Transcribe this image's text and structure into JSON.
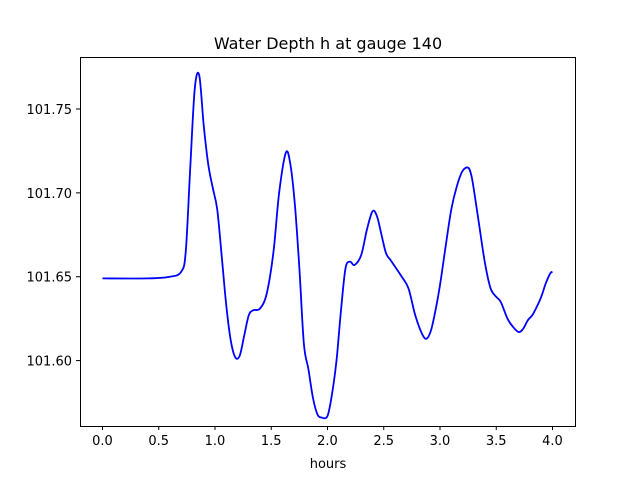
{
  "chart_data": {
    "type": "line",
    "title": "Water Depth h at gauge 140",
    "xlabel": "hours",
    "ylabel": "",
    "xlim": [
      -0.2,
      4.2
    ],
    "ylim": [
      101.561,
      101.781
    ],
    "grid": false,
    "x_ticks": [
      0.0,
      0.5,
      1.0,
      1.5,
      2.0,
      2.5,
      3.0,
      3.5,
      4.0
    ],
    "x_tick_labels": [
      "0.0",
      "0.5",
      "1.0",
      "1.5",
      "2.0",
      "2.5",
      "3.0",
      "3.5",
      "4.0"
    ],
    "y_ticks": [
      101.6,
      101.65,
      101.7,
      101.75
    ],
    "y_tick_labels": [
      "101.60",
      "101.65",
      "101.70",
      "101.75"
    ],
    "series": [
      {
        "color": "#0000ff",
        "x": [
          0.0,
          0.4,
          0.6,
          0.7,
          0.74,
          0.78,
          0.82,
          0.86,
          0.9,
          0.94,
          0.98,
          1.02,
          1.06,
          1.1,
          1.14,
          1.18,
          1.22,
          1.26,
          1.3,
          1.34,
          1.4,
          1.46,
          1.52,
          1.57,
          1.63,
          1.67,
          1.71,
          1.75,
          1.79,
          1.83,
          1.87,
          1.91,
          1.95,
          2.0,
          2.04,
          2.08,
          2.12,
          2.16,
          2.2,
          2.24,
          2.3,
          2.35,
          2.4,
          2.44,
          2.48,
          2.52,
          2.56,
          2.6,
          2.66,
          2.72,
          2.78,
          2.84,
          2.88,
          2.92,
          2.96,
          3.0,
          3.05,
          3.1,
          3.15,
          3.2,
          3.25,
          3.28,
          3.31,
          3.35,
          3.4,
          3.45,
          3.5,
          3.54,
          3.6,
          3.65,
          3.7,
          3.74,
          3.78,
          3.82,
          3.86,
          3.9,
          3.94,
          3.98,
          4.0
        ],
        "y": [
          101.649,
          101.649,
          101.65,
          101.653,
          101.665,
          101.715,
          101.762,
          101.77,
          101.74,
          101.717,
          101.703,
          101.69,
          101.662,
          101.633,
          101.612,
          101.602,
          101.603,
          101.615,
          101.627,
          101.63,
          101.631,
          101.64,
          101.665,
          101.7,
          101.724,
          101.717,
          101.693,
          101.655,
          101.61,
          101.595,
          101.578,
          101.568,
          101.566,
          101.567,
          101.58,
          101.6,
          101.63,
          101.655,
          101.659,
          101.657,
          101.663,
          101.678,
          101.689,
          101.686,
          101.675,
          101.664,
          101.66,
          101.656,
          101.65,
          101.643,
          101.627,
          101.616,
          101.613,
          101.618,
          101.63,
          101.645,
          101.668,
          101.69,
          101.704,
          101.713,
          101.715,
          101.71,
          101.698,
          101.68,
          101.658,
          101.643,
          101.638,
          101.635,
          101.625,
          101.62,
          101.617,
          101.619,
          101.624,
          101.627,
          101.632,
          101.638,
          101.646,
          101.652,
          101.653
        ]
      }
    ]
  }
}
